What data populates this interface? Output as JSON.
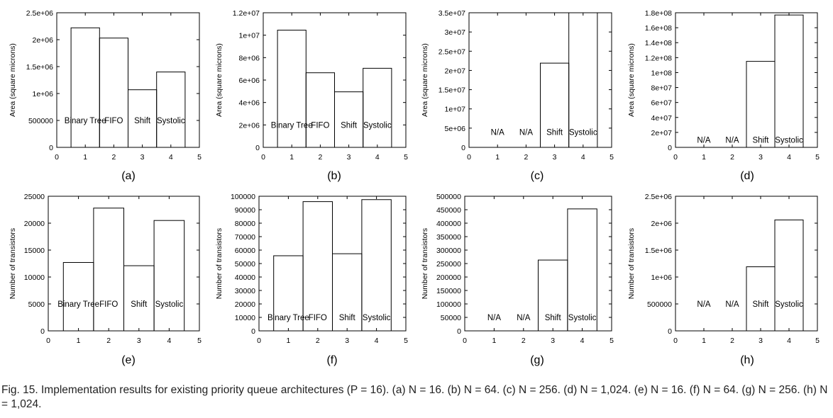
{
  "caption": "Fig. 15. Implementation results for existing priority queue architectures (P = 16). (a) N = 16. (b) N = 64. (c) N = 256. (d) N = 1,024. (e) N = 16. (f) N = 64. (g) N = 256. (h) N = 1,024.",
  "chart_data": [
    {
      "id": "a",
      "panel_label": "(a)",
      "type": "bar",
      "ylabel": "Area (square microns)",
      "xlim": [
        0,
        5
      ],
      "xticks": [
        "0",
        "1",
        "2",
        "3",
        "4",
        "5"
      ],
      "ylim": [
        0,
        2500000
      ],
      "yticks": [
        0,
        500000,
        1000000,
        1500000,
        2000000,
        2500000
      ],
      "ytick_labels": [
        "0",
        "500000",
        "1e+06",
        "1.5e+06",
        "2e+06",
        "2.5e+06"
      ],
      "x": [
        1,
        2,
        3,
        4
      ],
      "values": [
        2220000,
        2030000,
        1070000,
        1400000
      ],
      "bar_labels": [
        "Binary Tree",
        "FIFO",
        "Shift",
        "Systolic"
      ],
      "label_y": 500000
    },
    {
      "id": "b",
      "panel_label": "(b)",
      "type": "bar",
      "ylabel": "Area (square microns)",
      "xlim": [
        0,
        5
      ],
      "xticks": [
        "0",
        "1",
        "2",
        "3",
        "4",
        "5"
      ],
      "ylim": [
        0,
        12000000
      ],
      "yticks": [
        0,
        2000000,
        4000000,
        6000000,
        8000000,
        10000000,
        12000000
      ],
      "ytick_labels": [
        "0",
        "2e+06",
        "4e+06",
        "6e+06",
        "8e+06",
        "1e+07",
        "1.2e+07"
      ],
      "x": [
        1,
        2,
        3,
        4
      ],
      "values": [
        10450000,
        6650000,
        4950000,
        7050000
      ],
      "bar_labels": [
        "Binary Tree",
        "FIFO",
        "Shift",
        "Systolic"
      ],
      "label_y": 2000000
    },
    {
      "id": "c",
      "panel_label": "(c)",
      "type": "bar",
      "ylabel": "Area (square microns)",
      "xlim": [
        0,
        5
      ],
      "xticks": [
        "0",
        "1",
        "2",
        "3",
        "4",
        "5"
      ],
      "ylim": [
        0,
        35000000
      ],
      "yticks": [
        0,
        5000000,
        10000000,
        15000000,
        20000000,
        25000000,
        30000000,
        35000000
      ],
      "ytick_labels": [
        "0",
        "5e+06",
        "1e+07",
        "1.5e+07",
        "2e+07",
        "2.5e+07",
        "3e+07",
        "3.5e+07"
      ],
      "x": [
        1,
        2,
        3,
        4
      ],
      "values": [
        null,
        null,
        21900000,
        35000000
      ],
      "bar_labels": [
        "N/A",
        "N/A",
        "Shift",
        "Systolic"
      ],
      "label_y": 4000000
    },
    {
      "id": "d",
      "panel_label": "(d)",
      "type": "bar",
      "ylabel": "Area (square microns)",
      "xlim": [
        0,
        5
      ],
      "xticks": [
        "0",
        "1",
        "2",
        "3",
        "4",
        "5"
      ],
      "ylim": [
        0,
        180000000
      ],
      "yticks": [
        0,
        20000000,
        40000000,
        60000000,
        80000000,
        100000000,
        120000000,
        140000000,
        160000000,
        180000000
      ],
      "ytick_labels": [
        "0",
        "2e+07",
        "4e+07",
        "6e+07",
        "8e+07",
        "1e+08",
        "1.2e+08",
        "1.4e+08",
        "1.6e+08",
        "1.8e+08"
      ],
      "x": [
        1,
        2,
        3,
        4
      ],
      "values": [
        null,
        null,
        115000000,
        177000000
      ],
      "bar_labels": [
        "N/A",
        "N/A",
        "Shift",
        "Systolic"
      ],
      "label_y": 10000000
    },
    {
      "id": "e",
      "panel_label": "(e)",
      "type": "bar",
      "ylabel": "Number of transistors",
      "xlim": [
        0,
        5
      ],
      "xticks": [
        "0",
        "1",
        "2",
        "3",
        "4",
        "5"
      ],
      "ylim": [
        0,
        25000
      ],
      "yticks": [
        0,
        5000,
        10000,
        15000,
        20000,
        25000
      ],
      "ytick_labels": [
        "0",
        "5000",
        "10000",
        "15000",
        "20000",
        "25000"
      ],
      "x": [
        1,
        2,
        3,
        4
      ],
      "values": [
        12700,
        22800,
        12100,
        20500
      ],
      "bar_labels": [
        "Binary Tree",
        "FIFO",
        "Shift",
        "Systolic"
      ],
      "label_y": 5000
    },
    {
      "id": "f",
      "panel_label": "(f)",
      "type": "bar",
      "ylabel": "Number of transistors",
      "xlim": [
        0,
        5
      ],
      "xticks": [
        "0",
        "1",
        "2",
        "3",
        "4",
        "5"
      ],
      "ylim": [
        0,
        100000
      ],
      "yticks": [
        0,
        10000,
        20000,
        30000,
        40000,
        50000,
        60000,
        70000,
        80000,
        90000,
        100000
      ],
      "ytick_labels": [
        "0",
        "10000",
        "20000",
        "30000",
        "40000",
        "50000",
        "60000",
        "70000",
        "80000",
        "90000",
        "100000"
      ],
      "x": [
        1,
        2,
        3,
        4
      ],
      "values": [
        55800,
        96000,
        57300,
        97500
      ],
      "bar_labels": [
        "Binary Tree",
        "FIFO",
        "Shift",
        "Systolic"
      ],
      "label_y": 10000
    },
    {
      "id": "g",
      "panel_label": "(g)",
      "type": "bar",
      "ylabel": "Number of transistors",
      "xlim": [
        0,
        5
      ],
      "xticks": [
        "0",
        "1",
        "2",
        "3",
        "4",
        "5"
      ],
      "ylim": [
        0,
        500000
      ],
      "yticks": [
        0,
        50000,
        100000,
        150000,
        200000,
        250000,
        300000,
        350000,
        400000,
        450000,
        500000
      ],
      "ytick_labels": [
        "0",
        "50000",
        "100000",
        "150000",
        "200000",
        "250000",
        "300000",
        "350000",
        "400000",
        "450000",
        "500000"
      ],
      "x": [
        1,
        2,
        3,
        4
      ],
      "values": [
        null,
        null,
        263000,
        453000
      ],
      "bar_labels": [
        "N/A",
        "N/A",
        "Shift",
        "Systolic"
      ],
      "label_y": 50000
    },
    {
      "id": "h",
      "panel_label": "(h)",
      "type": "bar",
      "ylabel": "Number of transistors",
      "xlim": [
        0,
        5
      ],
      "xticks": [
        "0",
        "1",
        "2",
        "3",
        "4",
        "5"
      ],
      "ylim": [
        0,
        2500000
      ],
      "yticks": [
        0,
        500000,
        1000000,
        1500000,
        2000000,
        2500000
      ],
      "ytick_labels": [
        "0",
        "500000",
        "1e+06",
        "1.5e+06",
        "2e+06",
        "2.5e+06"
      ],
      "x": [
        1,
        2,
        3,
        4
      ],
      "values": [
        null,
        null,
        1190000,
        2060000
      ],
      "bar_labels": [
        "N/A",
        "N/A",
        "Shift",
        "Systolic"
      ],
      "label_y": 500000
    }
  ]
}
